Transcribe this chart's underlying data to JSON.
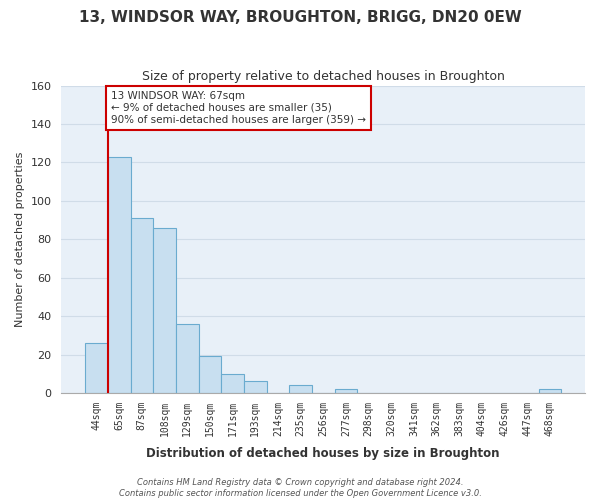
{
  "title": "13, WINDSOR WAY, BROUGHTON, BRIGG, DN20 0EW",
  "subtitle": "Size of property relative to detached houses in Broughton",
  "xlabel": "Distribution of detached houses by size in Broughton",
  "ylabel": "Number of detached properties",
  "bar_labels": [
    "44sqm",
    "65sqm",
    "87sqm",
    "108sqm",
    "129sqm",
    "150sqm",
    "171sqm",
    "193sqm",
    "214sqm",
    "235sqm",
    "256sqm",
    "277sqm",
    "298sqm",
    "320sqm",
    "341sqm",
    "362sqm",
    "383sqm",
    "404sqm",
    "426sqm",
    "447sqm",
    "468sqm"
  ],
  "bar_values": [
    26,
    123,
    91,
    86,
    36,
    19,
    10,
    6,
    0,
    4,
    0,
    2,
    0,
    0,
    0,
    0,
    0,
    0,
    0,
    0,
    2
  ],
  "bar_color": "#c8dff0",
  "bar_edge_color": "#6aabcf",
  "grid_color": "#d0dce8",
  "bg_color": "#e8f0f8",
  "vline_color": "#cc0000",
  "vline_x_index": 1,
  "ylim": [
    0,
    160
  ],
  "yticks": [
    0,
    20,
    40,
    60,
    80,
    100,
    120,
    140,
    160
  ],
  "annotation_line1": "13 WINDSOR WAY: 67sqm",
  "annotation_line2": "← 9% of detached houses are smaller (35)",
  "annotation_line3": "90% of semi-detached houses are larger (359) →",
  "annotation_box_color": "#ffffff",
  "annotation_box_edge": "#cc0000",
  "footer1": "Contains HM Land Registry data © Crown copyright and database right 2024.",
  "footer2": "Contains public sector information licensed under the Open Government Licence v3.0."
}
